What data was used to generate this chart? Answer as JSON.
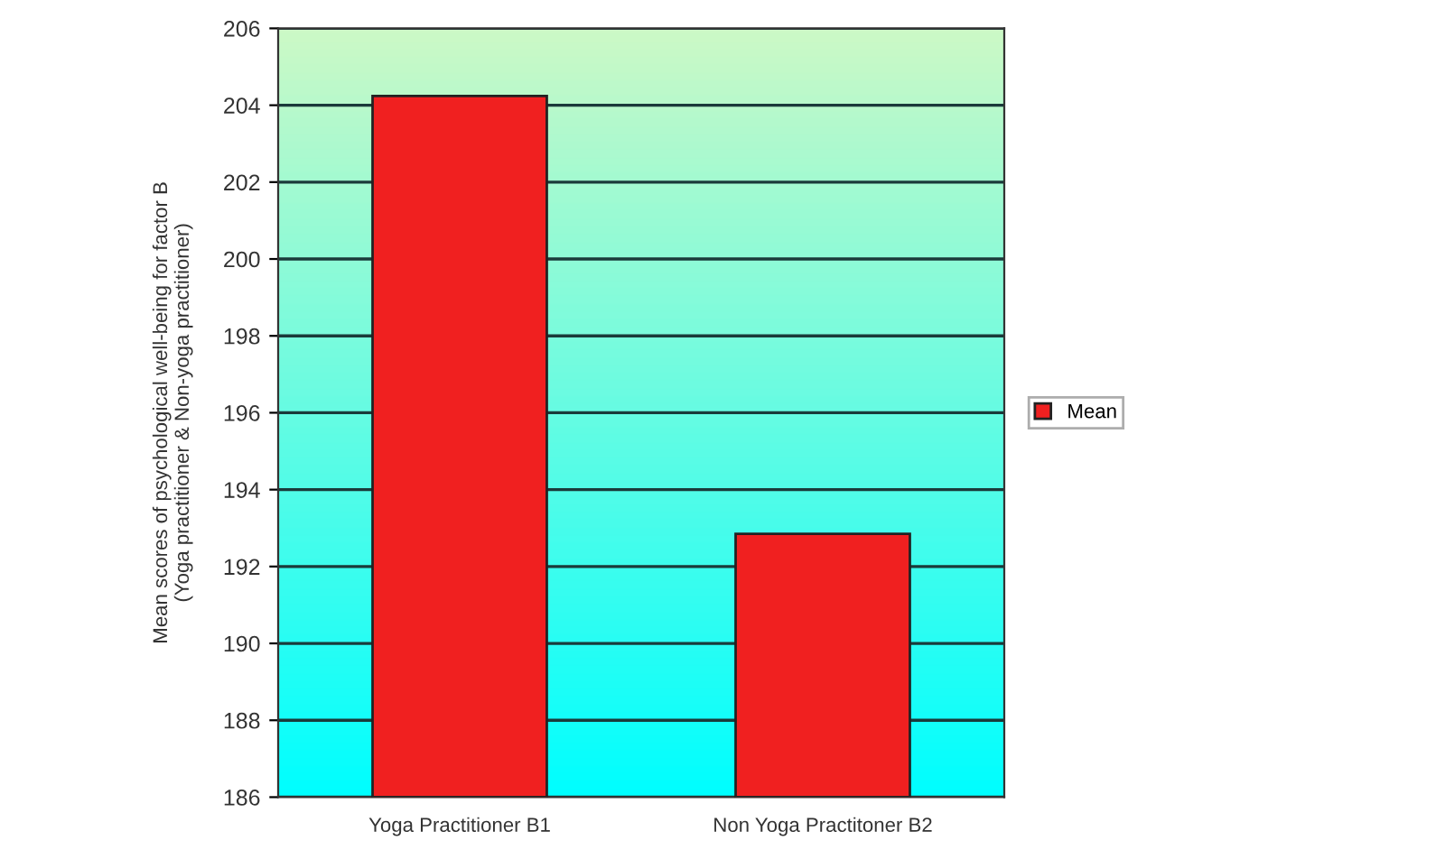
{
  "chart_data": {
    "type": "bar",
    "ylabel": "Mean scores of psychological well-being for factor B\n(Yoga practitioner & Non-yoga practitioner)",
    "categories": [
      "Yoga Practitioner B1",
      "Non Yoga Practitoner B2"
    ],
    "series": [
      {
        "name": "Mean",
        "color": "#f02020",
        "values": [
          204.24,
          192.85
        ]
      }
    ],
    "ylim": [
      186,
      206
    ],
    "yticks": [
      186,
      188,
      190,
      192,
      194,
      196,
      198,
      200,
      202,
      204,
      206
    ],
    "grid": "y",
    "legend": "right"
  }
}
